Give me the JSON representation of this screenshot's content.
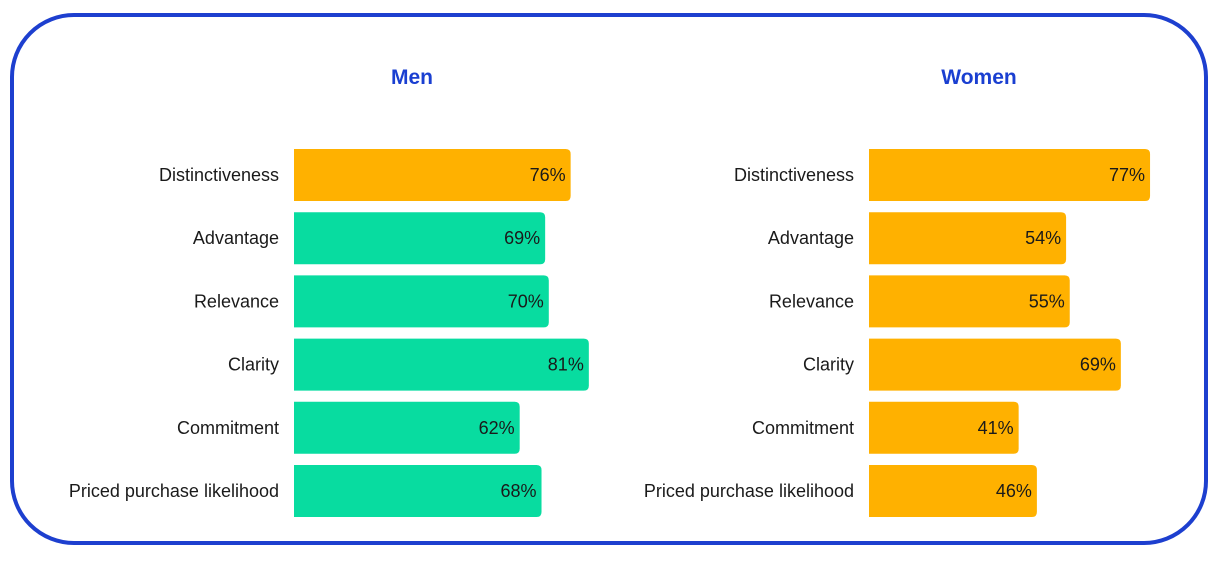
{
  "chart_data": [
    {
      "type": "bar",
      "orientation": "horizontal",
      "title": "Men",
      "categories": [
        "Distinctiveness",
        "Advantage",
        "Relevance",
        "Clarity",
        "Commitment",
        "Priced purchase likelihood"
      ],
      "values": [
        76,
        69,
        70,
        81,
        62,
        68
      ],
      "value_labels": [
        "76%",
        "69%",
        "70%",
        "81%",
        "62%",
        "68%"
      ],
      "bar_colors": [
        "#FFB100",
        "#08DCA0",
        "#08DCA0",
        "#08DCA0",
        "#08DCA0",
        "#08DCA0"
      ],
      "xlim": [
        0,
        100
      ],
      "grid": false
    },
    {
      "type": "bar",
      "orientation": "horizontal",
      "title": "Women",
      "categories": [
        "Distinctiveness",
        "Advantage",
        "Relevance",
        "Clarity",
        "Commitment",
        "Priced purchase likelihood"
      ],
      "values": [
        77,
        54,
        55,
        69,
        41,
        46
      ],
      "value_labels": [
        "77%",
        "54%",
        "55%",
        "69%",
        "41%",
        "46%"
      ],
      "bar_colors": [
        "#FFB100",
        "#FFB100",
        "#FFB100",
        "#FFB100",
        "#FFB100",
        "#FFB100"
      ],
      "xlim": [
        0,
        100
      ],
      "grid": false
    }
  ],
  "colors": {
    "frame_border": "#1D3FCF",
    "title_text": "#1A3FD1",
    "orange": "#FFB100",
    "green": "#08DCA0"
  }
}
